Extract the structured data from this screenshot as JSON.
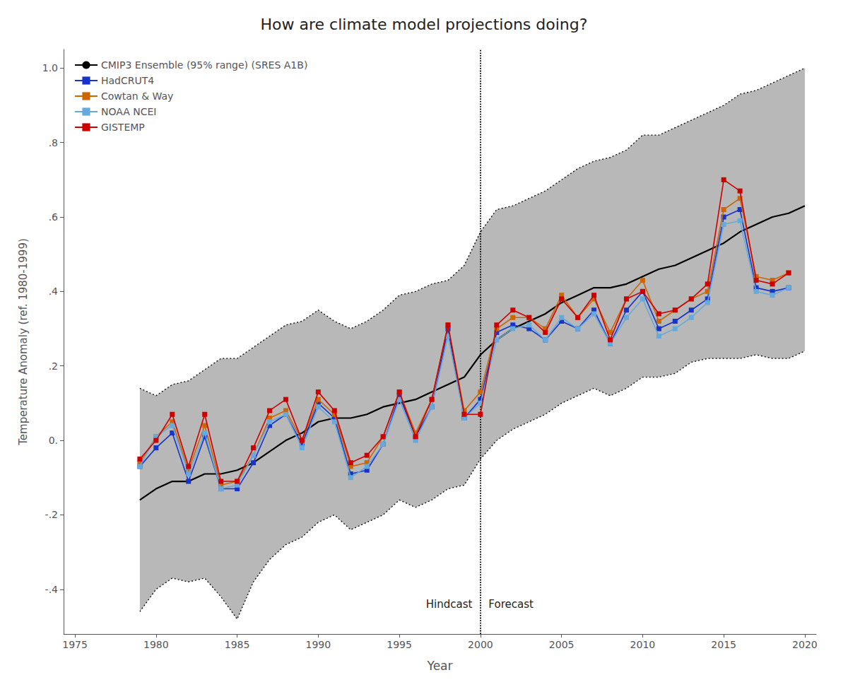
{
  "chart_data": {
    "type": "line",
    "title": "How are climate model projections doing?",
    "xlabel": "Year",
    "ylabel": "Temperature Anomaly (ref. 1980-1999)",
    "xlim": [
      1974.3,
      2020.7
    ],
    "xticks": [
      1975,
      1980,
      1985,
      1990,
      1995,
      2000,
      2005,
      2010,
      2015,
      2020
    ],
    "ylim": [
      -0.52,
      1.05
    ],
    "yticks": [
      {
        "value": -0.4,
        "label": "-.4"
      },
      {
        "value": -0.2,
        "label": "-.2"
      },
      {
        "value": 0.0,
        "label": "0."
      },
      {
        "value": 0.2,
        "label": ".2"
      },
      {
        "value": 0.4,
        "label": ".4"
      },
      {
        "value": 0.6,
        "label": ".6"
      },
      {
        "value": 0.8,
        "label": ".8"
      },
      {
        "value": 1.0,
        "label": "1.0"
      }
    ],
    "grid": false,
    "legend": "upper left",
    "divider_x": 2000,
    "annotations": [
      {
        "text": "Hindcast",
        "x": 1999.5,
        "y": -0.455
      },
      {
        "text": "Forecast",
        "x": 2000.5,
        "y": -0.455
      }
    ],
    "series": [
      {
        "name": "CMIP3 Ensemble (95% range) (SRES A1B)",
        "color": "#000000",
        "x": [
          1979,
          1980,
          1981,
          1982,
          1983,
          1984,
          1985,
          1986,
          1987,
          1988,
          1989,
          1990,
          1991,
          1992,
          1993,
          1994,
          1995,
          1996,
          1997,
          1998,
          1999,
          2000,
          2001,
          2002,
          2003,
          2004,
          2005,
          2006,
          2007,
          2008,
          2009,
          2010,
          2011,
          2012,
          2013,
          2014,
          2015,
          2016,
          2017,
          2018,
          2019,
          2020
        ],
        "values": [
          -0.16,
          -0.13,
          -0.11,
          -0.11,
          -0.09,
          -0.09,
          -0.08,
          -0.06,
          -0.03,
          0.0,
          0.02,
          0.05,
          0.06,
          0.06,
          0.07,
          0.09,
          0.1,
          0.11,
          0.13,
          0.15,
          0.17,
          0.23,
          0.27,
          0.3,
          0.32,
          0.34,
          0.37,
          0.39,
          0.41,
          0.41,
          0.42,
          0.44,
          0.46,
          0.47,
          0.49,
          0.51,
          0.53,
          0.56,
          0.58,
          0.6,
          0.61,
          0.63
        ],
        "lower": [
          -0.46,
          -0.4,
          -0.37,
          -0.38,
          -0.37,
          -0.42,
          -0.48,
          -0.38,
          -0.32,
          -0.28,
          -0.26,
          -0.22,
          -0.2,
          -0.24,
          -0.22,
          -0.2,
          -0.16,
          -0.18,
          -0.16,
          -0.13,
          -0.12,
          -0.05,
          0.0,
          0.03,
          0.05,
          0.07,
          0.1,
          0.12,
          0.14,
          0.12,
          0.14,
          0.17,
          0.17,
          0.18,
          0.21,
          0.22,
          0.22,
          0.22,
          0.23,
          0.22,
          0.22,
          0.24
        ],
        "upper": [
          0.14,
          0.12,
          0.15,
          0.16,
          0.19,
          0.22,
          0.22,
          0.25,
          0.28,
          0.31,
          0.32,
          0.35,
          0.32,
          0.3,
          0.32,
          0.35,
          0.39,
          0.4,
          0.42,
          0.43,
          0.47,
          0.56,
          0.62,
          0.63,
          0.65,
          0.67,
          0.7,
          0.73,
          0.75,
          0.76,
          0.78,
          0.82,
          0.82,
          0.84,
          0.86,
          0.88,
          0.9,
          0.93,
          0.94,
          0.96,
          0.98,
          1.0
        ]
      },
      {
        "name": "HadCRUT4",
        "color": "#1633cc",
        "marker": "square",
        "x": [
          1979,
          1980,
          1981,
          1982,
          1983,
          1984,
          1985,
          1986,
          1987,
          1988,
          1989,
          1990,
          1991,
          1992,
          1993,
          1994,
          1995,
          1996,
          1997,
          1998,
          1999,
          2000,
          2001,
          2002,
          2003,
          2004,
          2005,
          2006,
          2007,
          2008,
          2009,
          2010,
          2011,
          2012,
          2013,
          2014,
          2015,
          2016,
          2017,
          2018,
          2019
        ],
        "values": [
          -0.07,
          -0.02,
          0.02,
          -0.11,
          0.01,
          -0.13,
          -0.13,
          -0.06,
          0.04,
          0.07,
          -0.01,
          0.1,
          0.06,
          -0.09,
          -0.08,
          -0.01,
          0.12,
          0.01,
          0.09,
          0.3,
          0.06,
          0.11,
          0.29,
          0.31,
          0.3,
          0.27,
          0.32,
          0.3,
          0.35,
          0.26,
          0.35,
          0.4,
          0.3,
          0.32,
          0.35,
          0.38,
          0.6,
          0.62,
          0.41,
          0.4,
          0.41
        ]
      },
      {
        "name": "Cowtan & Way",
        "color": "#cc6600",
        "marker": "square",
        "x": [
          1979,
          1980,
          1981,
          1982,
          1983,
          1984,
          1985,
          1986,
          1987,
          1988,
          1989,
          1990,
          1991,
          1992,
          1993,
          1994,
          1995,
          1996,
          1997,
          1998,
          1999,
          2000,
          2001,
          2002,
          2003,
          2004,
          2005,
          2006,
          2007,
          2008,
          2009,
          2010,
          2011,
          2012,
          2013,
          2014,
          2015,
          2016,
          2017,
          2018,
          2019
        ],
        "values": [
          -0.06,
          0.01,
          0.05,
          -0.08,
          0.04,
          -0.12,
          -0.11,
          -0.04,
          0.06,
          0.08,
          0.0,
          0.11,
          0.07,
          -0.07,
          -0.06,
          0.01,
          0.13,
          0.02,
          0.11,
          0.31,
          0.08,
          0.13,
          0.3,
          0.33,
          0.33,
          0.3,
          0.39,
          0.33,
          0.38,
          0.29,
          0.38,
          0.43,
          0.32,
          0.35,
          0.38,
          0.4,
          0.62,
          0.65,
          0.44,
          0.43,
          0.45
        ]
      },
      {
        "name": "NOAA NCEI",
        "color": "#66aadd",
        "marker": "square",
        "x": [
          1979,
          1980,
          1981,
          1982,
          1983,
          1984,
          1985,
          1986,
          1987,
          1988,
          1989,
          1990,
          1991,
          1992,
          1993,
          1994,
          1995,
          1996,
          1997,
          1998,
          1999,
          2000,
          2001,
          2002,
          2003,
          2004,
          2005,
          2006,
          2007,
          2008,
          2009,
          2010,
          2011,
          2012,
          2013,
          2014,
          2015,
          2016,
          2017,
          2018,
          2019
        ],
        "values": [
          -0.07,
          0.01,
          0.04,
          -0.09,
          0.02,
          -0.13,
          -0.12,
          -0.04,
          0.05,
          0.07,
          -0.02,
          0.09,
          0.05,
          -0.1,
          -0.07,
          -0.01,
          0.11,
          0.0,
          0.09,
          0.28,
          0.06,
          0.1,
          0.27,
          0.3,
          0.31,
          0.27,
          0.33,
          0.3,
          0.34,
          0.26,
          0.33,
          0.38,
          0.28,
          0.3,
          0.33,
          0.37,
          0.58,
          0.59,
          0.4,
          0.39,
          0.41
        ]
      },
      {
        "name": "GISTEMP",
        "color": "#cc0000",
        "marker": "square",
        "x": [
          1979,
          1980,
          1981,
          1982,
          1983,
          1984,
          1985,
          1986,
          1987,
          1988,
          1989,
          1990,
          1991,
          1992,
          1993,
          1994,
          1995,
          1996,
          1997,
          1998,
          1999,
          2000,
          2001,
          2002,
          2003,
          2004,
          2005,
          2006,
          2007,
          2008,
          2009,
          2010,
          2011,
          2012,
          2013,
          2014,
          2015,
          2016,
          2017,
          2018,
          2019
        ],
        "values": [
          -0.05,
          0.0,
          0.07,
          -0.07,
          0.07,
          -0.11,
          -0.11,
          -0.02,
          0.08,
          0.11,
          0.0,
          0.13,
          0.08,
          -0.06,
          -0.04,
          0.01,
          0.13,
          0.01,
          0.11,
          0.31,
          0.07,
          0.07,
          0.31,
          0.35,
          0.33,
          0.29,
          0.38,
          0.33,
          0.39,
          0.27,
          0.38,
          0.4,
          0.34,
          0.35,
          0.38,
          0.42,
          0.7,
          0.67,
          0.43,
          0.42,
          0.45
        ]
      }
    ]
  }
}
